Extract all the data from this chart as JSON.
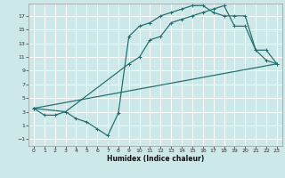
{
  "xlabel": "Humidex (Indice chaleur)",
  "bg_color": "#cce8e8",
  "grid_color": "#ffffff",
  "line_color": "#1e6b6b",
  "xlim": [
    -0.5,
    23.5
  ],
  "ylim": [
    -2.0,
    18.8
  ],
  "xticks": [
    0,
    1,
    2,
    3,
    4,
    5,
    6,
    7,
    8,
    9,
    10,
    11,
    12,
    13,
    14,
    15,
    16,
    17,
    18,
    19,
    20,
    21,
    22,
    23
  ],
  "yticks": [
    -1,
    1,
    3,
    5,
    7,
    9,
    11,
    13,
    15,
    17
  ],
  "line1_x": [
    0,
    1,
    2,
    3,
    4,
    5,
    6,
    7,
    8,
    9,
    10,
    11,
    12,
    13,
    14,
    15,
    16,
    17,
    18,
    19,
    20,
    21,
    22,
    23
  ],
  "line1_y": [
    3.5,
    2.5,
    2.5,
    3.0,
    2.0,
    1.5,
    0.5,
    -0.5,
    2.8,
    14.0,
    15.5,
    16.0,
    17.0,
    17.5,
    18.0,
    18.5,
    18.5,
    17.5,
    17.0,
    17.0,
    17.0,
    12.0,
    10.5,
    10.0
  ],
  "line2_x": [
    0,
    3,
    9,
    10,
    11,
    12,
    13,
    14,
    15,
    16,
    17,
    18,
    19,
    20,
    21,
    22,
    23
  ],
  "line2_y": [
    3.5,
    3.0,
    10.0,
    11.0,
    13.5,
    14.0,
    16.0,
    16.5,
    17.0,
    17.5,
    18.0,
    18.5,
    15.5,
    15.5,
    12.0,
    12.0,
    10.0
  ],
  "line3_x": [
    0,
    23
  ],
  "line3_y": [
    3.5,
    10.0
  ]
}
